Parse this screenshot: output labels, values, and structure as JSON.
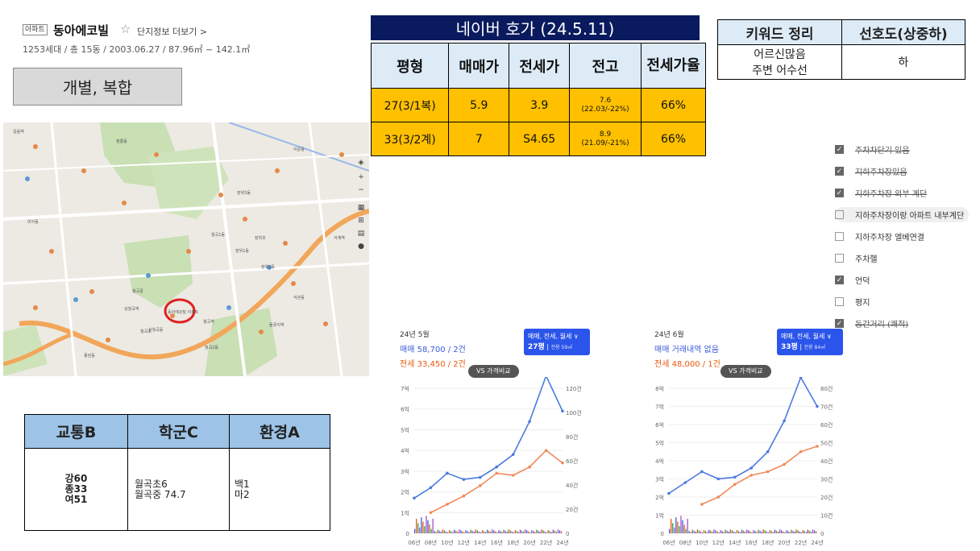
{
  "header": {
    "badge": "아파트",
    "name": "동아에코빌",
    "star": "☆",
    "more_link": "단지정보 더보기 >",
    "info": "1253세대 / 총 15동 / 2003.06.27 / 87.96㎡ ~ 142.1㎡"
  },
  "type_box": {
    "label": "개별, 복합"
  },
  "price": {
    "title": "네이버 호가 (24.5.11)",
    "headers": [
      "평형",
      "매매가",
      "전세가",
      "전고",
      "전세가율"
    ],
    "rows": [
      {
        "type": "27(3/1복)",
        "sale": "5.9",
        "jeonse": "3.9",
        "high": "7.6",
        "high_sub": "(22.03/-22%)",
        "ratio": "66%"
      },
      {
        "type": "33(3/2계)",
        "sale": "7",
        "jeonse": "S4.65",
        "high": "8.9",
        "high_sub": "(21.09/-21%)",
        "ratio": "66%"
      }
    ]
  },
  "keywords": {
    "headers": [
      "키워드 정리",
      "선호도(상중하)"
    ],
    "line1": "어르신많음",
    "line2": "주변 어수선",
    "preference": "하"
  },
  "checklist": [
    {
      "label": "주차차단기 있음",
      "checked": true,
      "strike": true
    },
    {
      "label": "지하주차장있음",
      "checked": true,
      "strike": true
    },
    {
      "label": "지하주차장 외부 계단",
      "checked": true,
      "strike": true
    },
    {
      "label": "지하주차장이랑 아파트 내부계단",
      "checked": false,
      "strike": false
    },
    {
      "label": "지하주차장 엘베연결",
      "checked": false,
      "strike": false
    },
    {
      "label": "주차헬",
      "checked": false,
      "strike": false
    },
    {
      "label": "언덕",
      "checked": true,
      "strike": false
    },
    {
      "label": "평지",
      "checked": false,
      "strike": false
    },
    {
      "label": "동간거리 (쾌적)",
      "checked": true,
      "strike": true
    }
  ],
  "evaluation": {
    "headers": [
      "교통B",
      "학군C",
      "환경A"
    ],
    "traffic": [
      "강60",
      "종33",
      "여51"
    ],
    "school": [
      "월곡초6",
      "월곡중 74.7"
    ],
    "env": [
      "백1",
      "마2"
    ]
  },
  "map": {
    "labels": [
      "월곡1동",
      "장위1동",
      "장위2동",
      "석관동",
      "동아에코빌 아파트",
      "월곡역",
      "상월곡역",
      "돌곶이역",
      "장위3동",
      "종암동",
      "길음역",
      "미아동",
      "상월곡동",
      "석계역",
      "월곡2동",
      "정릉동",
      "이문동",
      "월곡초",
      "월곡중",
      "장위초"
    ]
  },
  "charts": [
    {
      "date": "24년 5월",
      "sale": "매매 58,700 / 2건",
      "jeonse": "전세 33,450 / 2건",
      "dropdown": "매매, 전세, 월세 ∨",
      "size": "27평",
      "size_sub": "전용 59㎡",
      "vs": "VS 가격비교",
      "y_left": [
        "7억",
        "6억",
        "5억",
        "4억",
        "3억",
        "2억",
        "1억",
        "0"
      ],
      "y_right": [
        "120건",
        "100건",
        "80건",
        "60건",
        "40건",
        "20건",
        "0"
      ],
      "x": [
        "06년",
        "08년",
        "10년",
        "12년",
        "14년",
        "16년",
        "18년",
        "20년",
        "22년",
        "24년"
      ],
      "chart_data": {
        "type": "line",
        "x": [
          "06년",
          "08년",
          "10년",
          "12년",
          "14년",
          "16년",
          "18년",
          "20년",
          "22년",
          "24년"
        ],
        "series": [
          {
            "name": "매매",
            "values": [
              1.7,
              2.2,
              2.9,
              2.6,
              2.7,
              3.2,
              3.8,
              5.4,
              7.6,
              5.9
            ]
          },
          {
            "name": "전세",
            "values": [
              null,
              1.0,
              1.4,
              1.8,
              2.3,
              2.9,
              2.8,
              3.2,
              4.0,
              3.4
            ]
          }
        ],
        "ylim": [
          0,
          7
        ]
      }
    },
    {
      "date": "24년 6월",
      "sale": "매매 거래내역 없음",
      "jeonse": "전세 48,000 / 1건",
      "dropdown": "매매, 전세, 월세 ∨",
      "size": "33평",
      "size_sub": "전용 84㎡",
      "vs": "VS 가격비교",
      "y_left": [
        "8억",
        "7억",
        "6억",
        "5억",
        "4억",
        "3억",
        "2억",
        "1억",
        "0"
      ],
      "y_right": [
        "80건",
        "70건",
        "60건",
        "50건",
        "40건",
        "30건",
        "20건",
        "10건",
        "0"
      ],
      "x": [
        "06년",
        "08년",
        "10년",
        "12년",
        "14년",
        "16년",
        "18년",
        "20년",
        "22년",
        "24년"
      ],
      "chart_data": {
        "type": "line",
        "x": [
          "06년",
          "08년",
          "10년",
          "12년",
          "14년",
          "16년",
          "18년",
          "20년",
          "22年",
          "24년"
        ],
        "series": [
          {
            "name": "매매",
            "values": [
              2.2,
              2.8,
              3.4,
              3.0,
              3.1,
              3.6,
              4.5,
              6.2,
              8.6,
              7.0
            ]
          },
          {
            "name": "전세",
            "values": [
              null,
              null,
              1.6,
              2.0,
              2.7,
              3.2,
              3.4,
              3.8,
              4.5,
              4.8
            ]
          }
        ],
        "ylim": [
          0,
          8
        ]
      }
    }
  ],
  "colors": {
    "navy": "#0a1a5e",
    "header_blue": "#ddebf7",
    "gold": "#ffc000",
    "eval_blue": "#9dc3e6",
    "sale_line": "#4a7ae0",
    "jeonse_line": "#ef8a5a",
    "marker": "#e02020"
  }
}
